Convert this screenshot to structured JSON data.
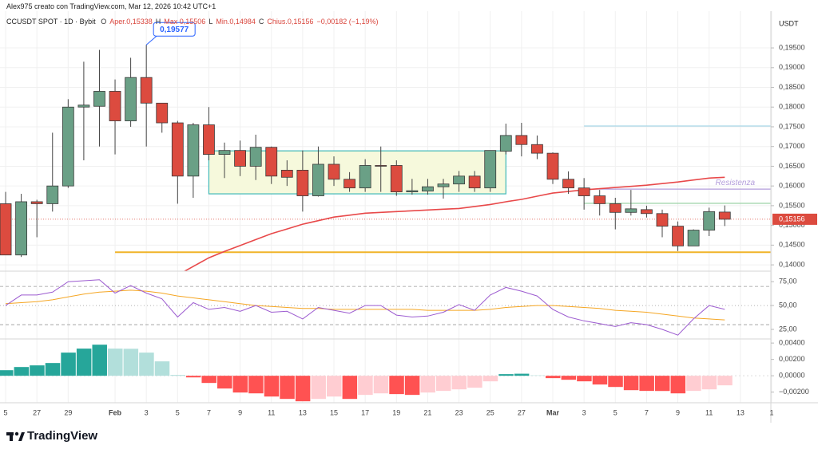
{
  "header": {
    "author": "Alex975 creato con TradingView.com, Mar 12, 2026 10:42 UTC+1",
    "symbol": "CCUSDT SPOT · 1D · Bybit",
    "ohlc": [
      {
        "key": "O",
        "text": "Aper.0,15338"
      },
      {
        "key": "H",
        "text": "Max 0,15506"
      },
      {
        "key": "L",
        "text": "Min.0,14984"
      },
      {
        "key": "C",
        "text": "Chius.0,15156"
      }
    ],
    "change": "−0,00182 (−1,19%)",
    "currency": "USDT"
  },
  "footer": {
    "brand": "TradingView"
  },
  "chart_data": [
    {
      "type": "candlestick",
      "open": [
        0.1555,
        0.1425,
        0.156,
        0.1555,
        0.16,
        0.18,
        0.1802,
        0.184,
        0.1765,
        0.1875,
        0.181,
        0.176,
        0.1625,
        0.1755,
        0.168,
        0.169,
        0.165,
        0.1698,
        0.164,
        0.164,
        0.1575,
        0.1655,
        0.1617,
        0.1595,
        0.1652,
        0.1652,
        0.1585,
        0.1587,
        0.1598,
        0.1605,
        0.1625,
        0.1595,
        0.1688,
        0.1728,
        0.1705,
        0.1683,
        0.1617,
        0.1595,
        0.1575,
        0.1555,
        0.1533,
        0.154,
        0.153,
        0.1498,
        0.1448,
        0.1488,
        0.15338
      ],
      "high": [
        0.1585,
        0.158,
        0.1565,
        0.1735,
        0.182,
        0.1915,
        0.1945,
        0.187,
        0.1925,
        0.19577,
        0.181,
        0.1765,
        0.176,
        0.18,
        0.171,
        0.1715,
        0.173,
        0.17,
        0.1665,
        0.169,
        0.17,
        0.1675,
        0.1635,
        0.1668,
        0.17,
        0.1665,
        0.1618,
        0.1618,
        0.1618,
        0.1638,
        0.1638,
        0.169,
        0.1758,
        0.176,
        0.1728,
        0.1685,
        0.1637,
        0.162,
        0.159,
        0.157,
        0.159,
        0.155,
        0.154,
        0.151,
        0.149,
        0.1545,
        0.15506
      ],
      "low": [
        0.1425,
        0.142,
        0.147,
        0.1535,
        0.1595,
        0.1665,
        0.17,
        0.168,
        0.175,
        0.17,
        0.1735,
        0.1555,
        0.157,
        0.1665,
        0.162,
        0.1625,
        0.1615,
        0.1605,
        0.16,
        0.1535,
        0.1573,
        0.16,
        0.1585,
        0.1585,
        0.1585,
        0.1575,
        0.1578,
        0.1578,
        0.1568,
        0.1585,
        0.1585,
        0.1585,
        0.168,
        0.1675,
        0.1668,
        0.1605,
        0.158,
        0.154,
        0.1525,
        0.149,
        0.1525,
        0.152,
        0.147,
        0.1435,
        0.1448,
        0.1473,
        0.14984
      ],
      "close": [
        0.1425,
        0.156,
        0.1555,
        0.16,
        0.18,
        0.1805,
        0.184,
        0.1765,
        0.1875,
        0.181,
        0.176,
        0.1625,
        0.1755,
        0.168,
        0.169,
        0.165,
        0.1698,
        0.1625,
        0.1622,
        0.1575,
        0.1655,
        0.1617,
        0.1595,
        0.1652,
        0.165,
        0.1585,
        0.1588,
        0.1598,
        0.1605,
        0.1625,
        0.1595,
        0.169,
        0.1728,
        0.1705,
        0.1683,
        0.1617,
        0.1595,
        0.1575,
        0.1555,
        0.1533,
        0.1542,
        0.153,
        0.1498,
        0.1448,
        0.1488,
        0.1535,
        0.15156
      ],
      "up_color": "#6aa086",
      "down_color": "#dc4b3f",
      "ma": {
        "color": "#e8494a",
        "values": [
          null,
          null,
          null,
          null,
          null,
          null,
          null,
          null,
          null,
          null,
          null,
          0.1374,
          0.1396,
          0.1418,
          0.1434,
          0.1449,
          0.1464,
          0.1479,
          0.1491,
          0.1503,
          0.1512,
          0.1521,
          0.1526,
          0.1531,
          0.1533,
          0.1535,
          0.1537,
          0.1539,
          0.1541,
          0.1543,
          0.1548,
          0.1553,
          0.156,
          0.1566,
          0.1574,
          0.1582,
          0.1586,
          0.159,
          0.1593,
          0.1596,
          0.1599,
          0.1602,
          0.1606,
          0.161,
          0.1615,
          0.162,
          0.1622
        ]
      },
      "levels": [
        {
          "value": 0.1752,
          "color": "#a8d8e8",
          "from": 37
        },
        {
          "value": 0.1592,
          "color": "#b39ddb",
          "from": 37,
          "label": "Resistenza"
        },
        {
          "value": 0.1556,
          "color": "#8fce9b",
          "from": 37
        },
        {
          "value": 0.1432,
          "color": "#f0b429",
          "from": 7
        }
      ],
      "range_box": {
        "top": 0.1689,
        "bottom": 0.158,
        "from": 13,
        "to": 32,
        "fill": "#f6f9dc",
        "stroke": "#3fb8b8"
      },
      "high_note": {
        "index": 9,
        "value": 0.19577,
        "label": "0,19577"
      },
      "last_price": {
        "value": 0.15156,
        "label": "0,15156"
      },
      "xlim": [
        -0.36,
        48.95
      ],
      "xticks": [
        {
          "value": 0,
          "label": "5"
        },
        {
          "value": 2,
          "label": "27"
        },
        {
          "value": 4,
          "label": "29"
        },
        {
          "value": 7,
          "label": "Feb"
        },
        {
          "value": 9,
          "label": "3"
        },
        {
          "value": 11,
          "label": "5"
        },
        {
          "value": 13,
          "label": "7"
        },
        {
          "value": 15,
          "label": "9"
        },
        {
          "value": 17,
          "label": "11"
        },
        {
          "value": 19,
          "label": "13"
        },
        {
          "value": 21,
          "label": "15"
        },
        {
          "value": 23,
          "label": "17"
        },
        {
          "value": 25,
          "label": "19"
        },
        {
          "value": 27,
          "label": "21"
        },
        {
          "value": 29,
          "label": "23"
        },
        {
          "value": 31,
          "label": "25"
        },
        {
          "value": 33,
          "label": "27"
        },
        {
          "value": 35,
          "label": "Mar"
        },
        {
          "value": 37,
          "label": "3"
        },
        {
          "value": 39,
          "label": "5"
        },
        {
          "value": 41,
          "label": "7"
        },
        {
          "value": 43,
          "label": "9"
        },
        {
          "value": 45,
          "label": "11"
        },
        {
          "value": 47,
          "label": "13"
        },
        {
          "value": 49,
          "label": "1"
        }
      ],
      "ylim": [
        0.1384,
        0.2031
      ],
      "yticks": [
        {
          "value": 0.14,
          "label": "0,14000"
        },
        {
          "value": 0.145,
          "label": "0,14500"
        },
        {
          "value": 0.15,
          "label": "0,15000"
        },
        {
          "value": 0.155,
          "label": "0,15500"
        },
        {
          "value": 0.16,
          "label": "0,16000"
        },
        {
          "value": 0.165,
          "label": "0,16500"
        },
        {
          "value": 0.17,
          "label": "0,17000"
        },
        {
          "value": 0.175,
          "label": "0,17500"
        },
        {
          "value": 0.18,
          "label": "0,18000"
        },
        {
          "value": 0.185,
          "label": "0,18500"
        },
        {
          "value": 0.19,
          "label": "0,19000"
        },
        {
          "value": 0.195,
          "label": "0,19500"
        }
      ],
      "grid": true
    },
    {
      "type": "line",
      "series": [
        {
          "color": "#9c5bd0",
          "values": [
            50,
            61,
            61,
            64,
            75,
            76,
            77,
            63,
            71,
            63,
            57,
            38,
            53,
            46,
            48,
            44,
            50,
            43,
            44,
            36,
            48,
            45,
            42,
            50,
            50,
            40,
            38,
            39,
            43,
            51,
            45,
            61,
            69,
            65,
            60,
            46,
            38,
            34,
            31,
            28,
            32,
            30,
            25,
            19,
            36,
            50,
            46
          ]
        },
        {
          "color": "#f5a623",
          "values": [
            52,
            53,
            54,
            56,
            59,
            62,
            64,
            65,
            66,
            65,
            63,
            60,
            58,
            56,
            54,
            52,
            50,
            49,
            48,
            47,
            47,
            46,
            46,
            46,
            46,
            46,
            46,
            45,
            45,
            45,
            45,
            46,
            48,
            49,
            50,
            50,
            49,
            48,
            47,
            45,
            44,
            43,
            41,
            39,
            37,
            36,
            35
          ]
        }
      ],
      "bands": [
        70,
        50,
        30
      ],
      "ylim": [
        15,
        86
      ],
      "yticks": [
        {
          "value": 75,
          "label": "75,00"
        },
        {
          "value": 50,
          "label": "50,00"
        },
        {
          "value": 25,
          "label": "25,00"
        }
      ]
    },
    {
      "type": "bar",
      "values": [
        0.00068,
        0.00107,
        0.00127,
        0.00156,
        0.00283,
        0.00332,
        0.0038,
        0.00332,
        0.0033,
        0.00283,
        0.00176,
        0.0001,
        -0.0002,
        -0.00088,
        -0.00156,
        -0.00205,
        -0.00215,
        -0.00254,
        -0.00283,
        -0.00312,
        -0.00283,
        -0.00254,
        -0.00283,
        -0.00234,
        -0.00215,
        -0.00224,
        -0.00234,
        -0.00205,
        -0.00185,
        -0.00166,
        -0.00146,
        -0.00068,
        0.0002,
        0.00025,
        5e-05,
        -0.00029,
        -0.00049,
        -0.00068,
        -0.00107,
        -0.00137,
        -0.00176,
        -0.00185,
        -0.00186,
        -0.00215,
        -0.00185,
        -0.00166,
        -0.00117
      ],
      "colors": {
        "pos_up": "#26a69a",
        "pos_down": "#b2dfdb",
        "neg_down": "#ff5252",
        "neg_up": "#ffcdd2"
      },
      "ylim": [
        -0.0033,
        0.0045
      ],
      "yticks": [
        {
          "value": 0.004,
          "label": "0,00400"
        },
        {
          "value": 0.002,
          "label": "0,00200"
        },
        {
          "value": 0,
          "label": "0,00000"
        },
        {
          "value": -0.002,
          "label": "−0,00200"
        }
      ]
    }
  ]
}
